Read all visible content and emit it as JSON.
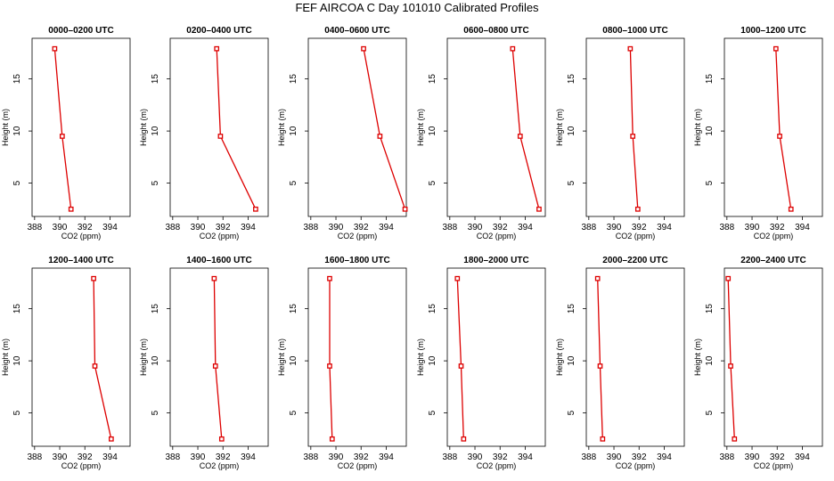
{
  "chart_data": {
    "type": "line",
    "title": "FEF AIRCOA C  Day 101010  Calibrated Profiles",
    "xlabel": "CO2 (ppm)",
    "ylabel": "Height (m)",
    "xlim": [
      387.8,
      395.6
    ],
    "ylim": [
      1.8,
      18.9
    ],
    "xticks": [
      388,
      390,
      392,
      394
    ],
    "yticks": [
      5,
      10,
      15
    ],
    "heights": [
      17.9,
      9.5,
      2.5
    ],
    "panels": [
      {
        "title": "0000–0200 UTC",
        "values": [
          389.6,
          390.2,
          390.9
        ]
      },
      {
        "title": "0200–0400 UTC",
        "values": [
          391.5,
          391.8,
          394.6
        ]
      },
      {
        "title": "0400–0600 UTC",
        "values": [
          392.2,
          393.5,
          395.5
        ]
      },
      {
        "title": "0600–0800 UTC",
        "values": [
          393.0,
          393.6,
          395.1
        ]
      },
      {
        "title": "0800–1000 UTC",
        "values": [
          391.3,
          391.5,
          391.9
        ]
      },
      {
        "title": "1000–1200 UTC",
        "values": [
          391.9,
          392.2,
          393.1
        ]
      },
      {
        "title": "1200–1400 UTC",
        "values": [
          392.7,
          392.8,
          394.1
        ]
      },
      {
        "title": "1400–1600 UTC",
        "values": [
          391.3,
          391.4,
          391.9
        ]
      },
      {
        "title": "1600–1800 UTC",
        "values": [
          389.5,
          389.5,
          389.7
        ]
      },
      {
        "title": "1800–2000 UTC",
        "values": [
          388.6,
          388.9,
          389.1
        ]
      },
      {
        "title": "2000–2200 UTC",
        "values": [
          388.7,
          388.9,
          389.1
        ]
      },
      {
        "title": "2200–2400 UTC",
        "values": [
          388.1,
          388.3,
          388.6
        ]
      }
    ]
  }
}
